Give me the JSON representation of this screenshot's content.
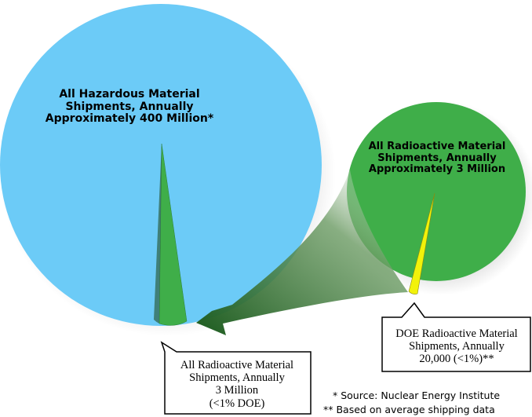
{
  "hazardous_circle": {
    "line1": "All Hazardous Material",
    "line2": "Shipments, Annually",
    "line3": "Approximately 400 Million*",
    "color": "#6ccbf7"
  },
  "radioactive_circle": {
    "line1": "All Radioactive Material",
    "line2": "Shipments, Annually",
    "line3": "Approximately 3 Million",
    "color": "#3fae49"
  },
  "callout_left": {
    "line1": "All Radioactive Material",
    "line2": "Shipments, Annually",
    "line3": "3 Million",
    "line4": "(<1% DOE)"
  },
  "callout_right": {
    "line1": "DOE Radioactive Material",
    "line2": "Shipments, Annually",
    "line3": "20,000 (<1%)**"
  },
  "footnotes": {
    "source": "* Source: Nuclear Energy Institute",
    "note": "** Based on average shipping data"
  },
  "colors": {
    "wedge_green": "#3fae49",
    "wedge_yellow": "#f2f20a",
    "arrow_dark": "#1f5a20"
  }
}
